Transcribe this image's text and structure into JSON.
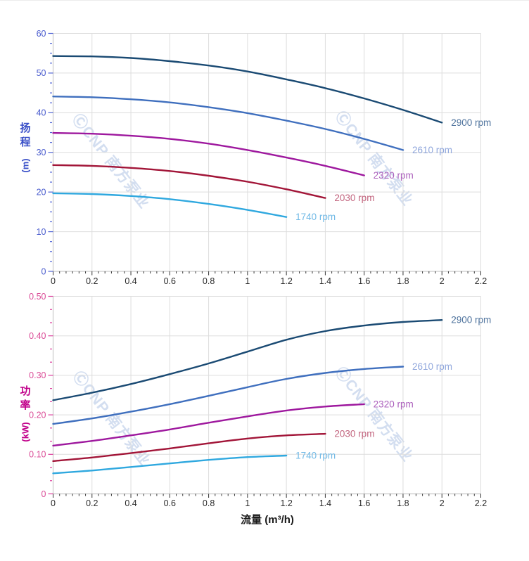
{
  "watermark": {
    "text": "ⒸCNP 南方泵业",
    "color": "rgba(175,194,227,0.55)"
  },
  "palette": {
    "grid": "#DDDDDD",
    "axis_line": "#C9C9C9",
    "x_tick": "#333333",
    "x_tick_label": "#2B2B2B",
    "head_tick": "#5064D6",
    "head_tick_label": "#4A5CCE",
    "head_title": "#3A50C8",
    "power_tick": "#DC3E9C",
    "power_tick_label": "#DB4E98",
    "power_title": "#C1008A",
    "flow_title": "#1A1A1A"
  },
  "chart_data": [
    {
      "type": "line",
      "title": "",
      "xlabel": "",
      "ylabel": "扬程 (m)",
      "ylabel_main": "扬程",
      "ylabel_unit": "(m)",
      "xlim": [
        0,
        2.2
      ],
      "ylim": [
        0,
        60
      ],
      "grid": true,
      "x_major_step": 0.2,
      "x_minor_div": 6,
      "y_major_step": 10,
      "y_minor_div": 4,
      "x_tick_labels": [
        "0",
        "0.2",
        "0.4",
        "0.6",
        "0.8",
        "1",
        "1.2",
        "1.4",
        "1.6",
        "1.8",
        "2",
        "2.2"
      ],
      "y_tick_labels": [
        "0",
        "10",
        "20",
        "30",
        "40",
        "50",
        "60"
      ],
      "legend_position": "curve-end-labels",
      "series": [
        {
          "name": "2900 rpm",
          "rpm": 2900,
          "color": "#1A4A73",
          "label_color": "#50749E",
          "points": [
            [
              0,
              54.3
            ],
            [
              0.2,
              54.2
            ],
            [
              0.4,
              53.8
            ],
            [
              0.6,
              53.0
            ],
            [
              0.8,
              51.9
            ],
            [
              1,
              50.4
            ],
            [
              1.2,
              48.4
            ],
            [
              1.4,
              46.2
            ],
            [
              1.6,
              43.6
            ],
            [
              1.8,
              40.7
            ],
            [
              2,
              37.5
            ]
          ]
        },
        {
          "name": "2610 rpm",
          "rpm": 2610,
          "color": "#3F6FBE",
          "label_color": "#8FA6DC",
          "points": [
            [
              0,
              44.1
            ],
            [
              0.2,
              43.9
            ],
            [
              0.4,
              43.4
            ],
            [
              0.6,
              42.6
            ],
            [
              0.8,
              41.4
            ],
            [
              1,
              39.9
            ],
            [
              1.2,
              38.0
            ],
            [
              1.4,
              35.9
            ],
            [
              1.6,
              33.4
            ],
            [
              1.8,
              30.6
            ]
          ]
        },
        {
          "name": "2320 rpm",
          "rpm": 2320,
          "color": "#9E189E",
          "label_color": "#AC60BC",
          "points": [
            [
              0,
              34.9
            ],
            [
              0.2,
              34.7
            ],
            [
              0.4,
              34.2
            ],
            [
              0.6,
              33.4
            ],
            [
              0.8,
              32.2
            ],
            [
              1,
              30.6
            ],
            [
              1.2,
              28.7
            ],
            [
              1.4,
              26.6
            ],
            [
              1.6,
              24.2
            ]
          ]
        },
        {
          "name": "2030 rpm",
          "rpm": 2030,
          "color": "#A21538",
          "label_color": "#C2647E",
          "points": [
            [
              0,
              26.8
            ],
            [
              0.2,
              26.6
            ],
            [
              0.4,
              26.1
            ],
            [
              0.6,
              25.3
            ],
            [
              0.8,
              24.1
            ],
            [
              1,
              22.6
            ],
            [
              1.2,
              20.7
            ],
            [
              1.4,
              18.5
            ]
          ]
        },
        {
          "name": "1740 rpm",
          "rpm": 1740,
          "color": "#2FA8DF",
          "label_color": "#72BAE6",
          "points": [
            [
              0,
              19.7
            ],
            [
              0.2,
              19.5
            ],
            [
              0.4,
              19.0
            ],
            [
              0.6,
              18.2
            ],
            [
              0.8,
              17.0
            ],
            [
              1,
              15.5
            ],
            [
              1.2,
              13.7
            ]
          ]
        }
      ]
    },
    {
      "type": "line",
      "title": "",
      "xlabel": "流量 (m³/h)",
      "ylabel": "功率 (kW)",
      "ylabel_main": "功率",
      "ylabel_unit": "(kW)",
      "xlim": [
        0,
        2.2
      ],
      "ylim": [
        0,
        0.5
      ],
      "grid": true,
      "x_major_step": 0.2,
      "x_minor_div": 6,
      "y_major_step": 0.1,
      "y_minor_div": 3,
      "x_tick_labels": [
        "0",
        "0.2",
        "0.4",
        "0.6",
        "0.8",
        "1",
        "1.2",
        "1.4",
        "1.6",
        "1.8",
        "2",
        "2.2"
      ],
      "y_tick_labels": [
        "0",
        "0.10",
        "0.20",
        "0.30",
        "0.40",
        "0.50"
      ],
      "legend_position": "curve-end-labels",
      "series": [
        {
          "name": "2900 rpm",
          "rpm": 2900,
          "color": "#1A4A73",
          "label_color": "#50749E",
          "points": [
            [
              0,
              0.237
            ],
            [
              0.2,
              0.256
            ],
            [
              0.4,
              0.278
            ],
            [
              0.6,
              0.303
            ],
            [
              0.8,
              0.33
            ],
            [
              1,
              0.36
            ],
            [
              1.2,
              0.39
            ],
            [
              1.4,
              0.412
            ],
            [
              1.6,
              0.426
            ],
            [
              1.8,
              0.435
            ],
            [
              2,
              0.44
            ]
          ]
        },
        {
          "name": "2610 rpm",
          "rpm": 2610,
          "color": "#3F6FBE",
          "label_color": "#8FA6DC",
          "points": [
            [
              0,
              0.177
            ],
            [
              0.2,
              0.191
            ],
            [
              0.4,
              0.208
            ],
            [
              0.6,
              0.227
            ],
            [
              0.8,
              0.248
            ],
            [
              1,
              0.27
            ],
            [
              1.2,
              0.291
            ],
            [
              1.4,
              0.306
            ],
            [
              1.6,
              0.316
            ],
            [
              1.8,
              0.322
            ]
          ]
        },
        {
          "name": "2320 rpm",
          "rpm": 2320,
          "color": "#9E189E",
          "label_color": "#AC60BC",
          "points": [
            [
              0,
              0.122
            ],
            [
              0.2,
              0.134
            ],
            [
              0.4,
              0.148
            ],
            [
              0.6,
              0.163
            ],
            [
              0.8,
              0.18
            ],
            [
              1,
              0.196
            ],
            [
              1.2,
              0.211
            ],
            [
              1.4,
              0.221
            ],
            [
              1.6,
              0.227
            ]
          ]
        },
        {
          "name": "2030 rpm",
          "rpm": 2030,
          "color": "#A21538",
          "label_color": "#C2647E",
          "points": [
            [
              0,
              0.083
            ],
            [
              0.2,
              0.092
            ],
            [
              0.4,
              0.103
            ],
            [
              0.6,
              0.115
            ],
            [
              0.8,
              0.128
            ],
            [
              1,
              0.14
            ],
            [
              1.2,
              0.148
            ],
            [
              1.4,
              0.152
            ]
          ]
        },
        {
          "name": "1740 rpm",
          "rpm": 1740,
          "color": "#2FA8DF",
          "label_color": "#72BAE6",
          "points": [
            [
              0,
              0.052
            ],
            [
              0.2,
              0.059
            ],
            [
              0.4,
              0.068
            ],
            [
              0.6,
              0.077
            ],
            [
              0.8,
              0.086
            ],
            [
              1,
              0.093
            ],
            [
              1.2,
              0.097
            ]
          ]
        }
      ]
    }
  ]
}
